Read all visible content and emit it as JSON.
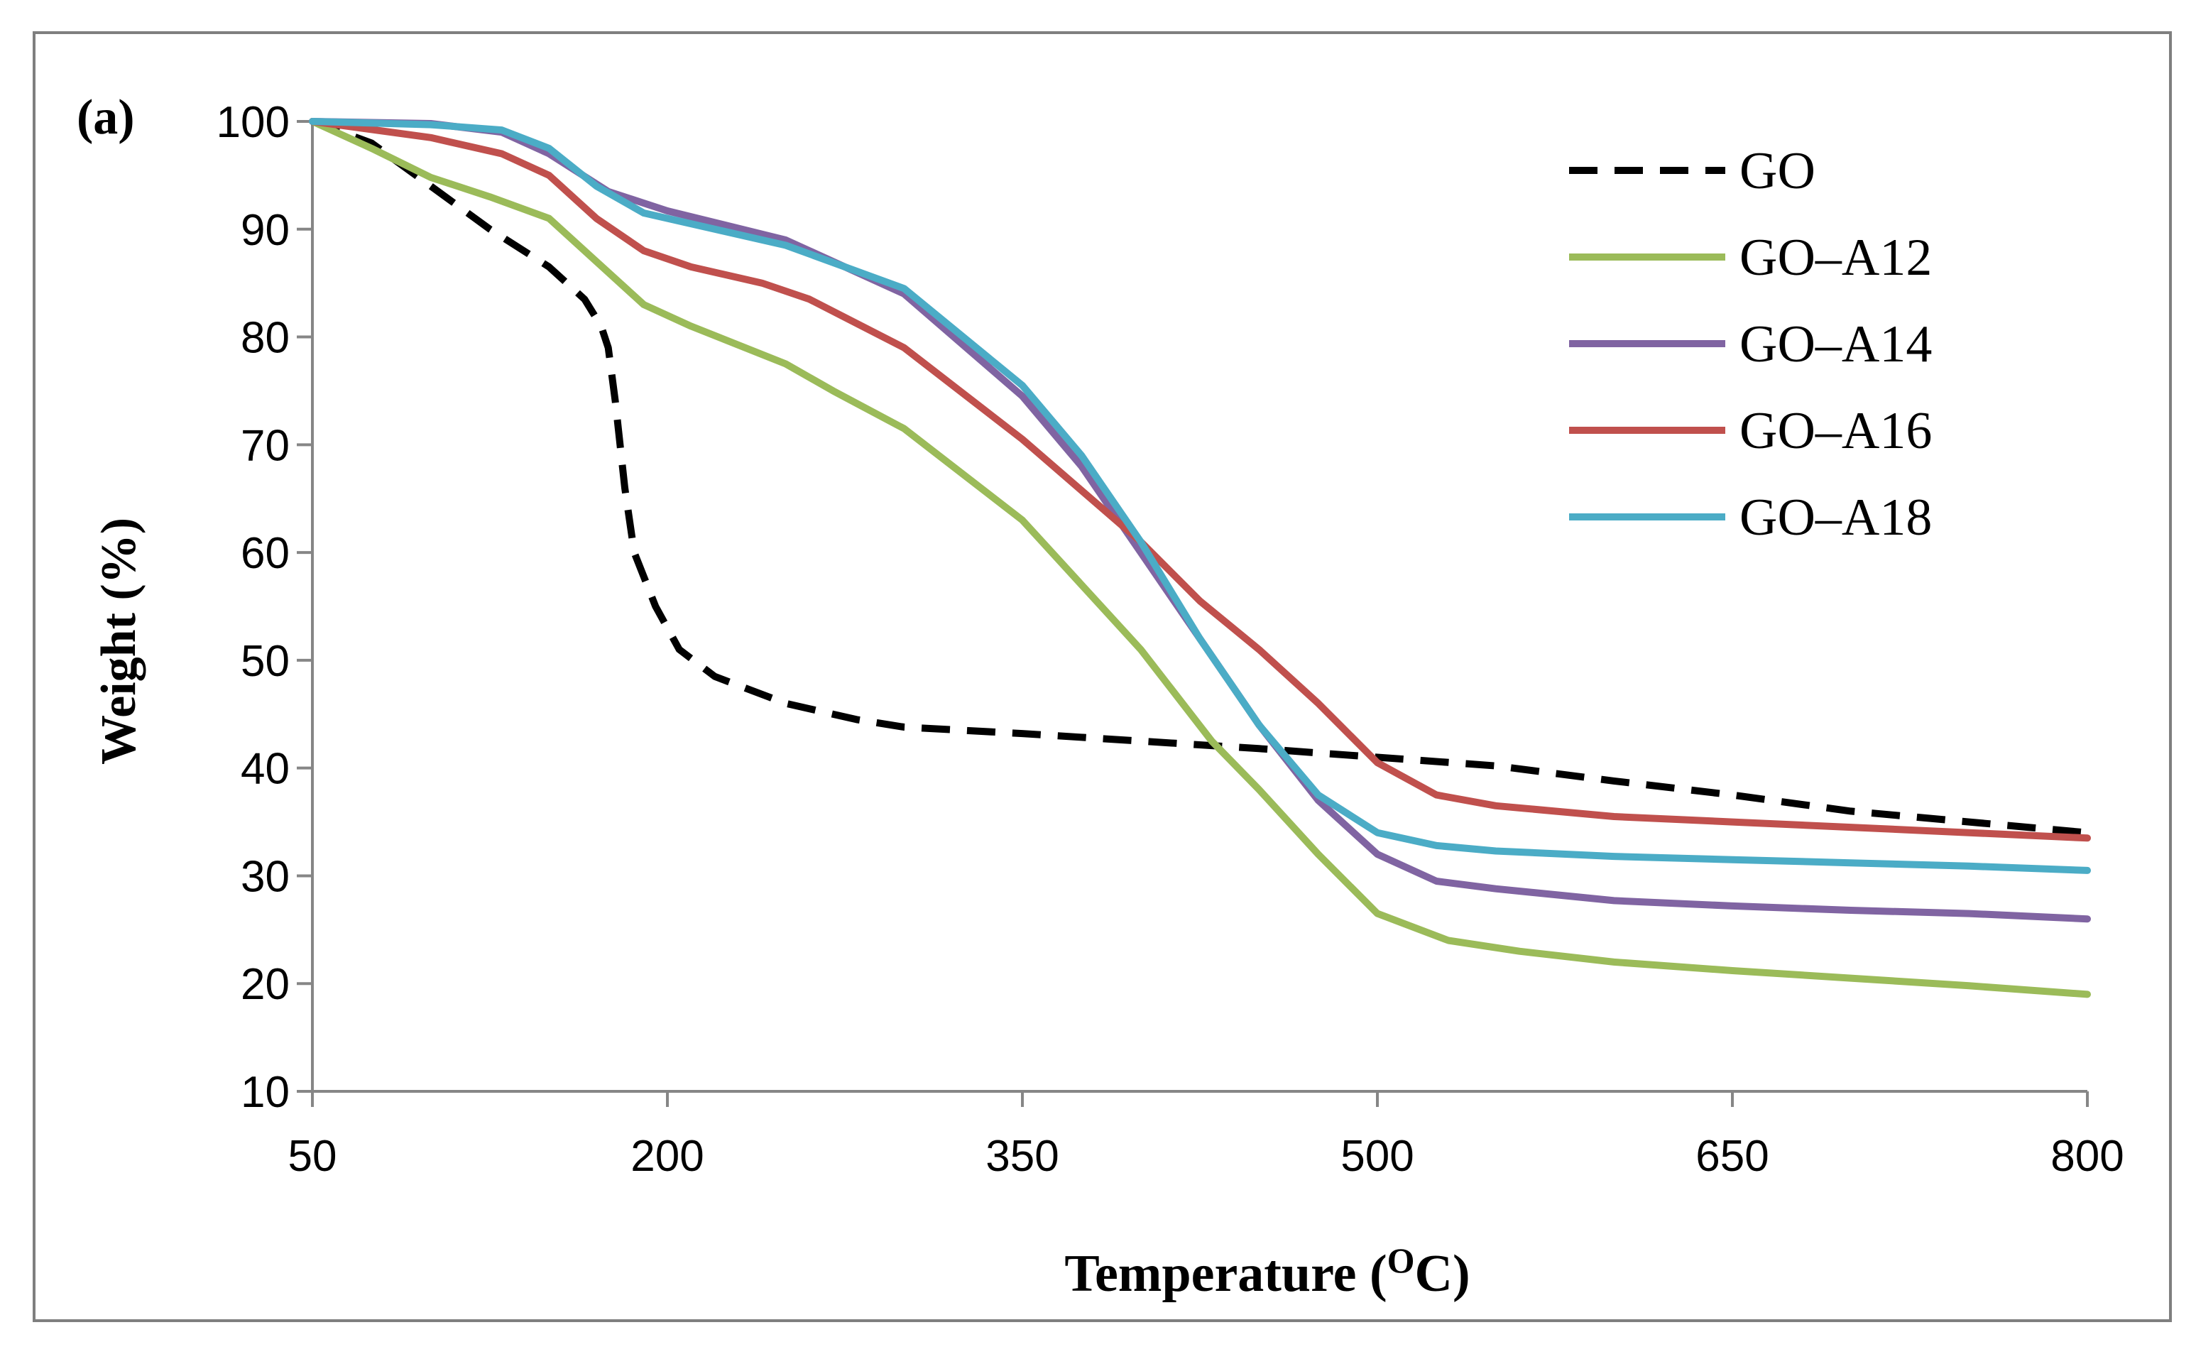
{
  "chart_data": {
    "type": "line",
    "panel_label": "(a)",
    "xlabel_main": "Temperature (",
    "xlabel_sup": "O",
    "xlabel_end": "C)",
    "ylabel": "Weight  (%)",
    "xlim": [
      50,
      800
    ],
    "ylim": [
      10,
      100
    ],
    "x_ticks": [
      50,
      200,
      350,
      500,
      650,
      800
    ],
    "y_ticks": [
      10,
      20,
      30,
      40,
      50,
      60,
      70,
      80,
      90,
      100
    ],
    "legend_position": "top-right",
    "grid": false,
    "series": [
      {
        "name": "GO",
        "color": "#000000",
        "dashed": true,
        "points": [
          [
            50,
            100
          ],
          [
            75,
            98
          ],
          [
            100,
            94
          ],
          [
            125,
            90
          ],
          [
            150,
            86.5
          ],
          [
            165,
            83.5
          ],
          [
            172,
            81
          ],
          [
            175,
            79
          ],
          [
            178,
            74
          ],
          [
            182,
            66
          ],
          [
            186,
            60
          ],
          [
            195,
            55
          ],
          [
            205,
            51
          ],
          [
            220,
            48.5
          ],
          [
            250,
            46
          ],
          [
            280,
            44.5
          ],
          [
            300,
            43.8
          ],
          [
            350,
            43.2
          ],
          [
            400,
            42.5
          ],
          [
            450,
            41.8
          ],
          [
            500,
            41
          ],
          [
            550,
            40.2
          ],
          [
            600,
            38.8
          ],
          [
            650,
            37.5
          ],
          [
            700,
            36
          ],
          [
            750,
            35
          ],
          [
            800,
            34
          ]
        ]
      },
      {
        "name": "GO–A12",
        "color": "#9bbb59",
        "dashed": false,
        "points": [
          [
            50,
            100
          ],
          [
            75,
            97.5
          ],
          [
            100,
            94.8
          ],
          [
            125,
            93
          ],
          [
            150,
            91
          ],
          [
            170,
            87
          ],
          [
            190,
            83
          ],
          [
            210,
            81
          ],
          [
            250,
            77.5
          ],
          [
            270,
            75
          ],
          [
            300,
            71.5
          ],
          [
            350,
            63
          ],
          [
            400,
            51
          ],
          [
            430,
            42.5
          ],
          [
            450,
            38
          ],
          [
            475,
            32
          ],
          [
            500,
            26.5
          ],
          [
            530,
            24
          ],
          [
            560,
            23
          ],
          [
            600,
            22
          ],
          [
            650,
            21.2
          ],
          [
            700,
            20.5
          ],
          [
            750,
            19.8
          ],
          [
            800,
            19
          ]
        ]
      },
      {
        "name": "GO–A14",
        "color": "#8064a2",
        "dashed": false,
        "points": [
          [
            50,
            100
          ],
          [
            100,
            99.8
          ],
          [
            130,
            99
          ],
          [
            150,
            97
          ],
          [
            175,
            93.5
          ],
          [
            200,
            91.7
          ],
          [
            250,
            89
          ],
          [
            300,
            84
          ],
          [
            350,
            74.5
          ],
          [
            375,
            68
          ],
          [
            400,
            60
          ],
          [
            425,
            52
          ],
          [
            450,
            44
          ],
          [
            475,
            37
          ],
          [
            500,
            32
          ],
          [
            525,
            29.5
          ],
          [
            550,
            28.8
          ],
          [
            600,
            27.7
          ],
          [
            650,
            27.2
          ],
          [
            700,
            26.8
          ],
          [
            750,
            26.5
          ],
          [
            800,
            26
          ]
        ]
      },
      {
        "name": "GO–A16",
        "color": "#c0504d",
        "dashed": false,
        "points": [
          [
            50,
            100
          ],
          [
            100,
            98.5
          ],
          [
            130,
            97
          ],
          [
            150,
            95
          ],
          [
            170,
            91
          ],
          [
            190,
            88
          ],
          [
            210,
            86.5
          ],
          [
            240,
            85
          ],
          [
            260,
            83.5
          ],
          [
            300,
            79
          ],
          [
            350,
            70.5
          ],
          [
            400,
            61
          ],
          [
            425,
            55.5
          ],
          [
            450,
            51
          ],
          [
            475,
            46
          ],
          [
            500,
            40.5
          ],
          [
            525,
            37.5
          ],
          [
            550,
            36.5
          ],
          [
            600,
            35.5
          ],
          [
            650,
            35
          ],
          [
            700,
            34.5
          ],
          [
            750,
            34
          ],
          [
            800,
            33.5
          ]
        ]
      },
      {
        "name": "GO–A18",
        "color": "#4bacc6",
        "dashed": false,
        "points": [
          [
            50,
            100
          ],
          [
            100,
            99.7
          ],
          [
            130,
            99.2
          ],
          [
            150,
            97.5
          ],
          [
            170,
            94
          ],
          [
            190,
            91.5
          ],
          [
            220,
            90
          ],
          [
            250,
            88.5
          ],
          [
            300,
            84.5
          ],
          [
            350,
            75.5
          ],
          [
            375,
            69
          ],
          [
            400,
            61
          ],
          [
            425,
            52
          ],
          [
            450,
            44
          ],
          [
            475,
            37.5
          ],
          [
            500,
            34
          ],
          [
            525,
            32.8
          ],
          [
            550,
            32.3
          ],
          [
            600,
            31.8
          ],
          [
            650,
            31.5
          ],
          [
            700,
            31.2
          ],
          [
            750,
            30.9
          ],
          [
            800,
            30.5
          ]
        ]
      }
    ]
  }
}
